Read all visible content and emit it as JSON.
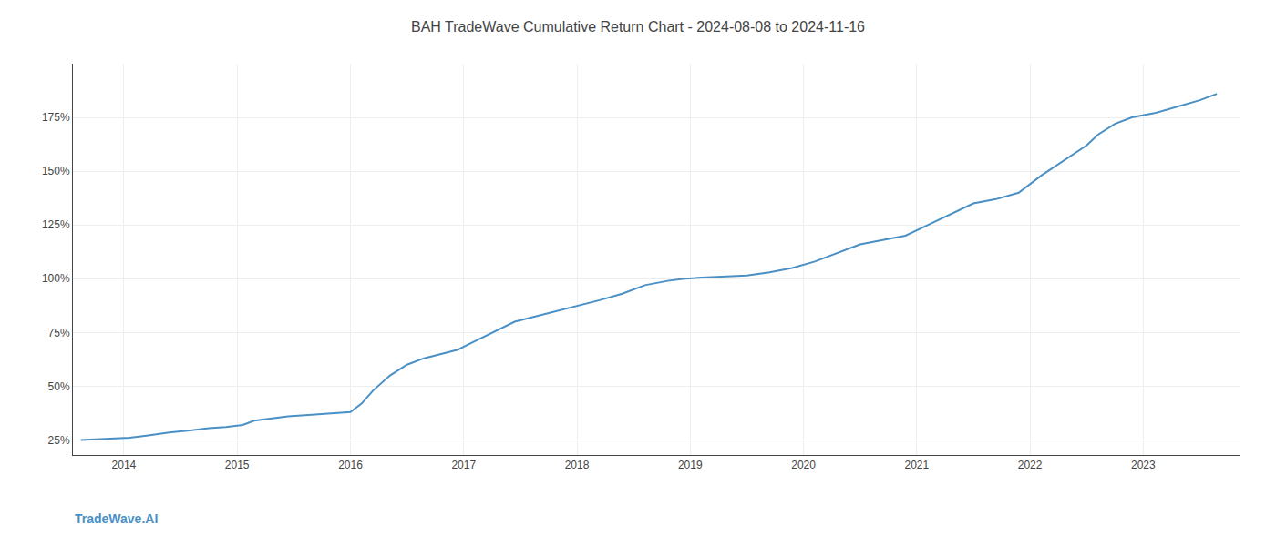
{
  "chart_data": {
    "type": "line",
    "title": "BAH TradeWave Cumulative Return Chart - 2024-08-08 to 2024-11-16",
    "annotations": [
      {
        "text": "TradeWave.AI",
        "color": "#4a90c4"
      }
    ],
    "x": [
      2013.62,
      2013.9,
      2014.05,
      2014.2,
      2014.4,
      2014.6,
      2014.75,
      2014.9,
      2015.05,
      2015.15,
      2015.3,
      2015.45,
      2015.6,
      2015.75,
      2015.9,
      2016.0,
      2016.1,
      2016.2,
      2016.35,
      2016.5,
      2016.65,
      2016.8,
      2016.95,
      2017.1,
      2017.25,
      2017.45,
      2017.6,
      2017.75,
      2017.9,
      2018.05,
      2018.2,
      2018.4,
      2018.6,
      2018.8,
      2018.95,
      2019.1,
      2019.3,
      2019.5,
      2019.7,
      2019.9,
      2020.1,
      2020.3,
      2020.5,
      2020.7,
      2020.9,
      2021.1,
      2021.3,
      2021.5,
      2021.7,
      2021.9,
      2022.1,
      2022.3,
      2022.5,
      2022.6,
      2022.75,
      2022.9,
      2023.1,
      2023.3,
      2023.5,
      2023.65
    ],
    "values": [
      25,
      25.5,
      26,
      27,
      28.5,
      29.5,
      30.5,
      31,
      32,
      34,
      35,
      36,
      36.5,
      37,
      37.5,
      38,
      42,
      48,
      55,
      60,
      63,
      65,
      67,
      71,
      75,
      80,
      82,
      84,
      86,
      88,
      90,
      93,
      97,
      99,
      100,
      100.5,
      101,
      101.5,
      103,
      105,
      108,
      112,
      116,
      118,
      120,
      125,
      130,
      135,
      137,
      140,
      148,
      155,
      162,
      167,
      172,
      175,
      177,
      180,
      183,
      186
    ],
    "color": "#4a90c4",
    "xlim": [
      2013.55,
      2023.85
    ],
    "xticks": [
      2014,
      2015,
      2016,
      2017,
      2018,
      2019,
      2020,
      2021,
      2022,
      2023
    ],
    "ylim": [
      18,
      200
    ],
    "yticks": [
      {
        "value": 25,
        "label": "25%"
      },
      {
        "value": 50,
        "label": "50%"
      },
      {
        "value": 75,
        "label": "75%"
      },
      {
        "value": 100,
        "label": "100%"
      },
      {
        "value": 125,
        "label": "125%"
      },
      {
        "value": 150,
        "label": "150%"
      },
      {
        "value": 175,
        "label": "175%"
      }
    ],
    "grid": true
  }
}
